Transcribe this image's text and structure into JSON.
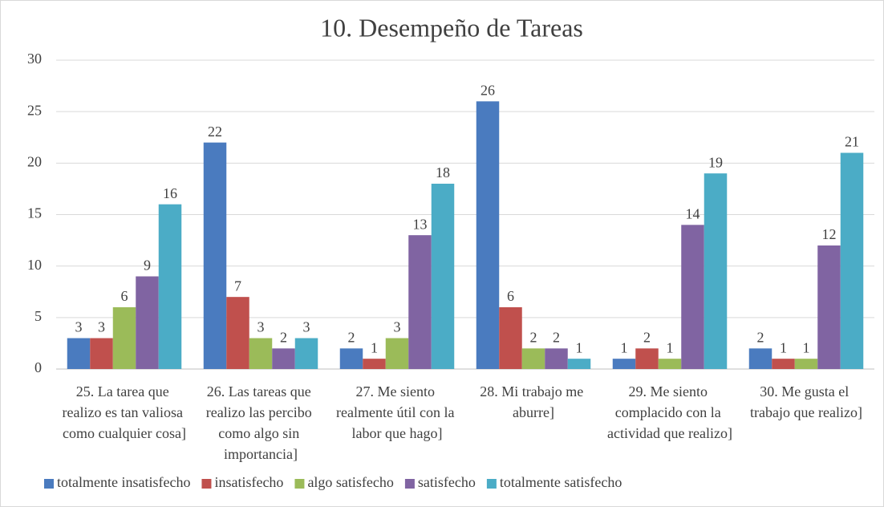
{
  "chart_data": {
    "type": "bar",
    "title": "10. Desempeño de Tareas",
    "categories": [
      "25. La tarea que realizo es tan valiosa como cualquier cosa]",
      "26. Las tareas que realizo las percibo como algo sin importancia]",
      "27. Me siento realmente útil con la labor que hago]",
      "28. Mi trabajo me aburre]",
      "29. Me siento complacido con la actividad que realizo]",
      "30. Me gusta el trabajo que realizo]"
    ],
    "series": [
      {
        "name": "totalmente insatisfecho",
        "color": "#4a7bbf",
        "values": [
          3,
          22,
          2,
          26,
          1,
          2
        ]
      },
      {
        "name": "insatisfecho",
        "color": "#c0504d",
        "values": [
          3,
          7,
          1,
          6,
          2,
          1
        ]
      },
      {
        "name": "algo satisfecho",
        "color": "#9bbb59",
        "values": [
          6,
          3,
          3,
          2,
          1,
          1
        ]
      },
      {
        "name": "satisfecho",
        "color": "#8064a2",
        "values": [
          9,
          2,
          13,
          2,
          14,
          12
        ]
      },
      {
        "name": "totalmente satisfecho",
        "color": "#4bacc6",
        "values": [
          16,
          3,
          18,
          1,
          19,
          21
        ]
      }
    ],
    "ylim": [
      0,
      30
    ],
    "yticks": [
      0,
      5,
      10,
      15,
      20,
      25,
      30
    ],
    "grid": true,
    "legend": "bottom"
  }
}
